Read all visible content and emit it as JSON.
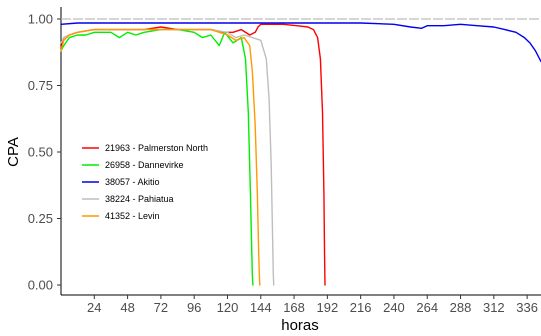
{
  "chart_data": {
    "type": "line",
    "title": "",
    "xlabel": "horas",
    "ylabel": "CPA",
    "xlim": [
      0,
      346
    ],
    "ylim": [
      0,
      1.04
    ],
    "x_ticks": [
      24,
      48,
      72,
      96,
      120,
      144,
      168,
      192,
      216,
      240,
      264,
      288,
      312,
      336
    ],
    "y_ticks": [
      0.0,
      0.25,
      0.5,
      0.75,
      1.0
    ],
    "y_tick_labels": [
      "0.00",
      "0.25",
      "0.50",
      "0.75",
      "1.00"
    ],
    "grid": false,
    "legend_position": "left-middle",
    "reference_line": 1.0,
    "series": [
      {
        "name": "21963 - Palmerston North",
        "color": "#ff0000",
        "x": [
          0,
          2,
          6,
          12,
          24,
          36,
          48,
          60,
          72,
          84,
          96,
          108,
          118,
          124,
          130,
          136,
          140,
          142,
          144,
          150,
          160,
          170,
          178,
          182,
          185,
          187,
          188.5,
          189.5,
          190,
          190.3
        ],
        "y": [
          0.89,
          0.93,
          0.94,
          0.95,
          0.96,
          0.96,
          0.96,
          0.96,
          0.97,
          0.96,
          0.96,
          0.96,
          0.95,
          0.95,
          0.96,
          0.94,
          0.95,
          0.97,
          0.98,
          0.98,
          0.98,
          0.975,
          0.97,
          0.96,
          0.93,
          0.85,
          0.65,
          0.35,
          0.1,
          0.0
        ]
      },
      {
        "name": "26958 - Dannevirke",
        "color": "#00ee00",
        "x": [
          0,
          2,
          6,
          12,
          18,
          24,
          36,
          42,
          48,
          54,
          60,
          72,
          84,
          96,
          102,
          108,
          114,
          118,
          124,
          130,
          133,
          135,
          136.5,
          137.5,
          138,
          138.3
        ],
        "y": [
          0.88,
          0.9,
          0.93,
          0.94,
          0.94,
          0.95,
          0.95,
          0.93,
          0.95,
          0.94,
          0.95,
          0.96,
          0.96,
          0.95,
          0.93,
          0.94,
          0.9,
          0.95,
          0.91,
          0.93,
          0.85,
          0.65,
          0.35,
          0.12,
          0.03,
          0.0
        ]
      },
      {
        "name": "38057 - Akitio",
        "color": "#0000ee",
        "x": [
          0,
          12,
          24,
          48,
          72,
          96,
          120,
          144,
          168,
          192,
          216,
          240,
          252,
          260,
          264,
          276,
          288,
          300,
          312,
          320,
          328,
          334,
          338,
          342,
          346
        ],
        "y": [
          0.98,
          0.985,
          0.985,
          0.985,
          0.985,
          0.985,
          0.985,
          0.985,
          0.985,
          0.985,
          0.985,
          0.98,
          0.97,
          0.965,
          0.975,
          0.975,
          0.98,
          0.975,
          0.97,
          0.96,
          0.95,
          0.93,
          0.91,
          0.88,
          0.84
        ]
      },
      {
        "name": "38224 - Pahiatua",
        "color": "#bebebe",
        "x": [
          0,
          2,
          6,
          12,
          24,
          36,
          48,
          60,
          72,
          84,
          96,
          108,
          120,
          126,
          132,
          138,
          144,
          148,
          150,
          151.5,
          152.5,
          153,
          153.3
        ],
        "y": [
          0.91,
          0.93,
          0.94,
          0.95,
          0.96,
          0.96,
          0.96,
          0.96,
          0.96,
          0.96,
          0.96,
          0.96,
          0.95,
          0.93,
          0.94,
          0.93,
          0.92,
          0.85,
          0.7,
          0.45,
          0.18,
          0.04,
          0.0
        ]
      },
      {
        "name": "41352 - Levin",
        "color": "#ff9900",
        "x": [
          0,
          2,
          6,
          12,
          24,
          36,
          48,
          60,
          72,
          84,
          96,
          108,
          120,
          126,
          132,
          136,
          138,
          140,
          141.5,
          142.5,
          143,
          143.3
        ],
        "y": [
          0.88,
          0.92,
          0.94,
          0.95,
          0.96,
          0.96,
          0.96,
          0.96,
          0.96,
          0.96,
          0.96,
          0.96,
          0.94,
          0.92,
          0.93,
          0.9,
          0.8,
          0.6,
          0.35,
          0.12,
          0.03,
          0.0
        ]
      }
    ]
  }
}
